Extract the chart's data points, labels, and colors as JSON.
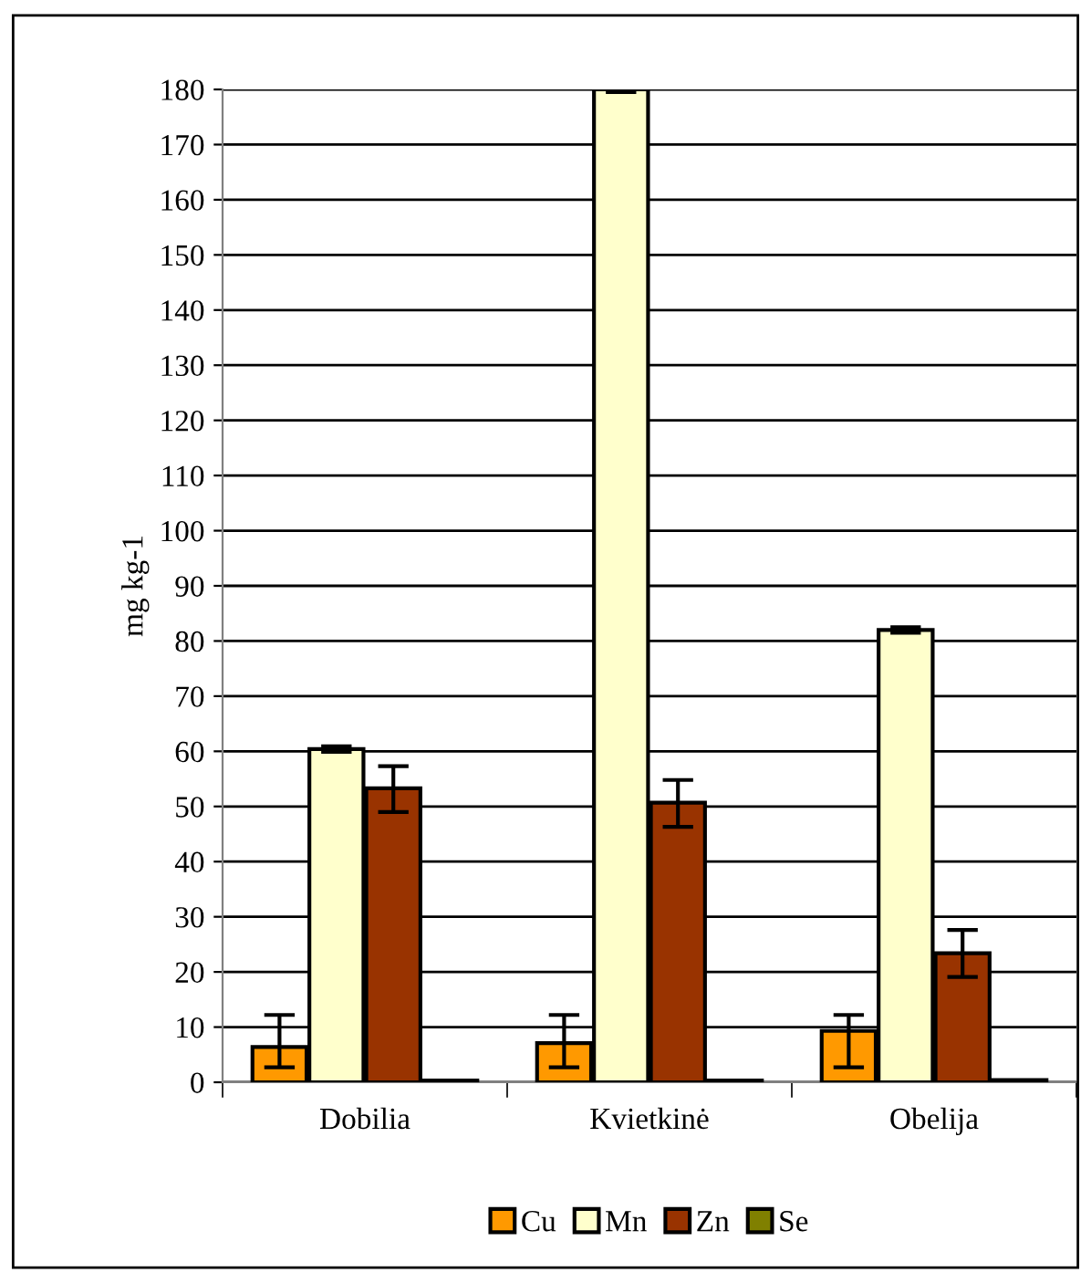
{
  "chart_data": {
    "type": "bar",
    "ylabel": "mg kg-1",
    "categories": [
      "Dobilia",
      "Kvietkinė",
      "Obelija"
    ],
    "series": [
      {
        "name": "Cu",
        "color": "#ff9900",
        "values": [
          6.4,
          7.1,
          9.3
        ],
        "errors": [
          [
            2.7,
            12.2
          ],
          [
            2.7,
            12.2
          ],
          [
            2.7,
            12.2
          ]
        ]
      },
      {
        "name": "Mn",
        "color": "#ffffcc",
        "values": [
          60.4,
          180,
          82
        ],
        "errors": [
          0.5,
          0.5,
          0.5
        ]
      },
      {
        "name": "Zn",
        "color": "#993300",
        "values": [
          53.3,
          50.7,
          23.4
        ],
        "errors": [
          [
            49.0,
            57.3
          ],
          [
            46.3,
            54.8
          ],
          [
            19.1,
            27.6
          ]
        ]
      },
      {
        "name": "Se",
        "color": "#808000",
        "values": [
          0.3,
          0.3,
          0.4
        ]
      }
    ],
    "ylim": [
      0,
      180
    ],
    "yticks": [
      0,
      10,
      20,
      30,
      40,
      50,
      60,
      70,
      80,
      90,
      100,
      110,
      120,
      130,
      140,
      150,
      160,
      170,
      180
    ],
    "grid": "y",
    "legend": "bottom"
  }
}
